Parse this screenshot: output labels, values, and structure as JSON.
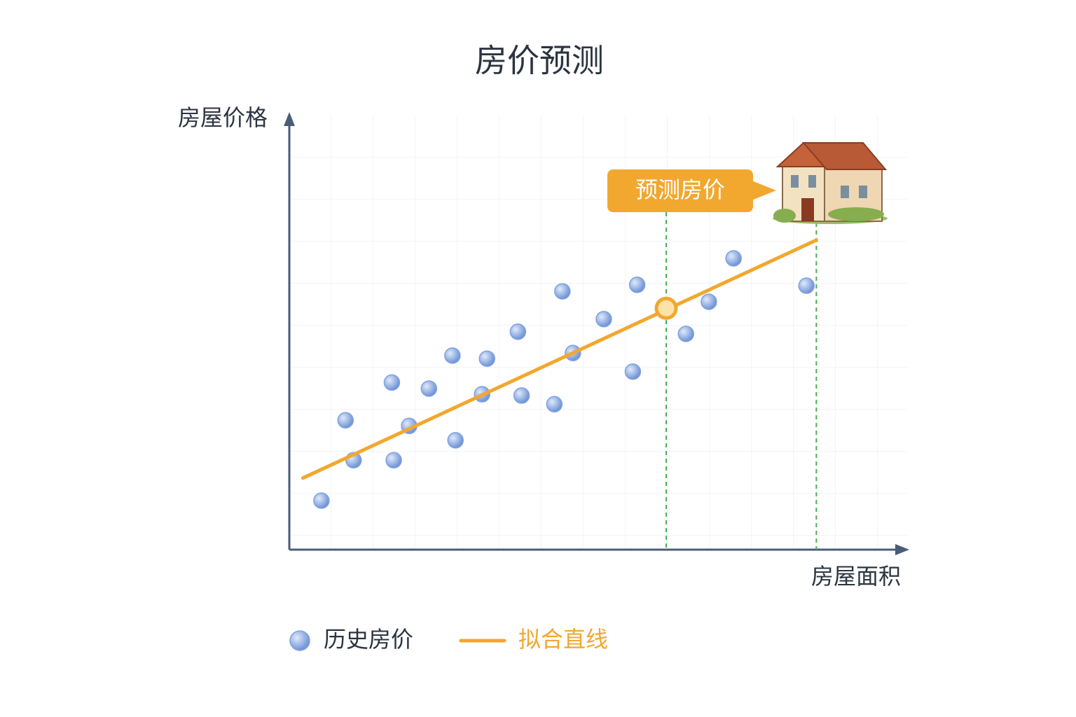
{
  "chart_data": {
    "type": "scatter",
    "title": "房价预测",
    "y_label": "房屋价格",
    "x_label": "房屋面积",
    "xlim": [
      0,
      100
    ],
    "ylim": [
      0,
      100
    ],
    "grid": true,
    "series": [
      {
        "name": "历史房价",
        "color": "#7fa3de",
        "x": [
          5.2,
          9.1,
          10.4,
          16.6,
          16.9,
          19.4,
          22.6,
          26.4,
          26.9,
          31.2,
          32.0,
          37.0,
          37.6,
          42.9,
          44.2,
          45.9,
          50.9,
          55.6,
          56.3,
          64.2,
          67.9,
          71.9,
          83.7
        ],
        "values": [
          11.3,
          29.8,
          20.6,
          38.5,
          20.6,
          28.5,
          37.1,
          44.7,
          25.2,
          35.8,
          44.0,
          50.2,
          35.5,
          33.5,
          59.5,
          45.3,
          53.1,
          41.0,
          61.0,
          49.7,
          57.1,
          67.1,
          60.8
        ]
      },
      {
        "name": "拟合直线",
        "color": "#f2a72e",
        "type": "line",
        "x": [
          2.2,
          85.3
        ],
        "values": [
          16.5,
          71.3
        ]
      }
    ],
    "annotation": {
      "text": "预测房价",
      "x": 61.0,
      "y": 55.6,
      "color": "#f2a72e",
      "guide_color": "#4caf50"
    }
  }
}
